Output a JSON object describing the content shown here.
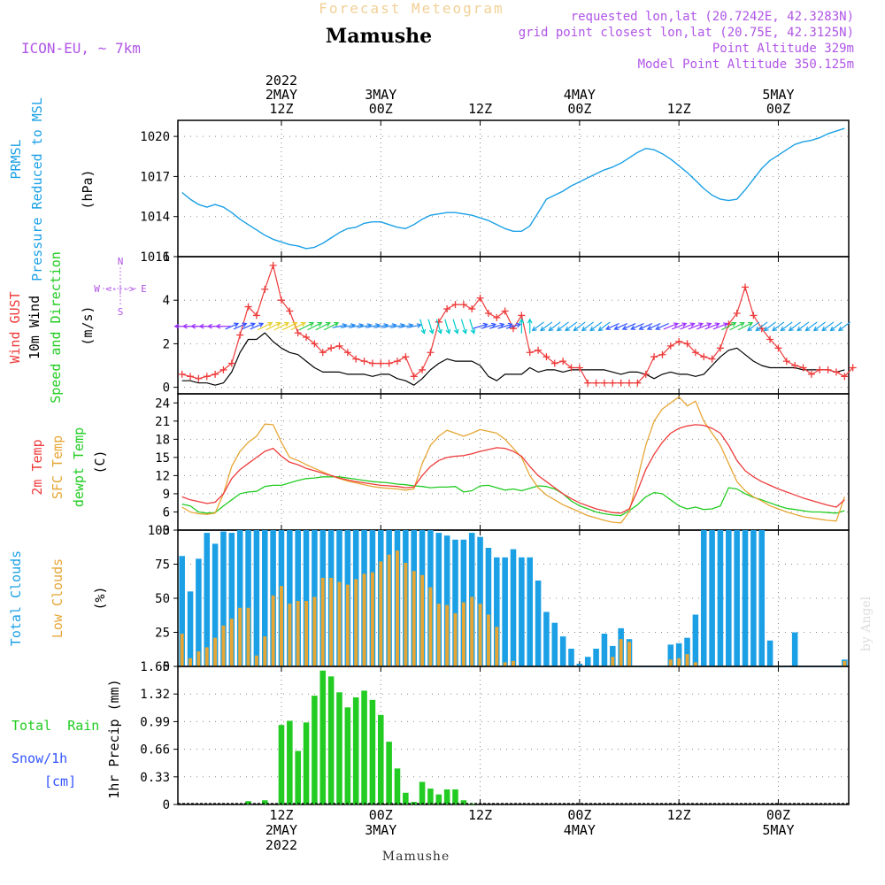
{
  "header": {
    "subtitle": "Forecast Meteogram",
    "location": "Mamushe",
    "model": "ICON-EU, ~ 7km",
    "requested": "requested lon,lat (20.7242E, 42.3283N)",
    "grid": "grid point closest lon,lat (20.75E, 42.3125N)",
    "point_alt": "Point Altitude 329m",
    "model_alt": "Model Point Altitude 350.125m",
    "footer_location": "Mamushe",
    "watermark": "by Angel"
  },
  "time_axis": {
    "top_labels": [
      {
        "h": 12,
        "lines": [
          "2022",
          "2MAY",
          "12Z"
        ]
      },
      {
        "h": 24,
        "lines": [
          "3MAY",
          "00Z"
        ]
      },
      {
        "h": 36,
        "lines": [
          "12Z"
        ]
      },
      {
        "h": 48,
        "lines": [
          "4MAY",
          "00Z"
        ]
      },
      {
        "h": 60,
        "lines": [
          "12Z"
        ]
      },
      {
        "h": 72,
        "lines": [
          "5MAY",
          "00Z"
        ]
      }
    ],
    "bottom_labels": [
      {
        "h": 12,
        "lines": [
          "12Z",
          "2MAY",
          "2022"
        ]
      },
      {
        "h": 24,
        "lines": [
          "00Z",
          "3MAY"
        ]
      },
      {
        "h": 36,
        "lines": [
          "12Z"
        ]
      },
      {
        "h": 48,
        "lines": [
          "00Z",
          "4MAY"
        ]
      },
      {
        "h": 60,
        "lines": [
          "12Z"
        ]
      },
      {
        "h": 72,
        "lines": [
          "00Z",
          "5MAY"
        ]
      }
    ]
  },
  "colors": {
    "blue": "#1ba0e6",
    "red": "#ee3b3b",
    "orange": "#e6a635",
    "green": "#22cc22",
    "purple": "#b055e6",
    "black": "#000000",
    "grid": "#888888"
  },
  "chart_data": [
    {
      "type": "line",
      "name": "pressure",
      "title_lines": [
        "PRMSL",
        "Pressure Reduced to MSL"
      ],
      "ylabel": "(hPa)",
      "ylim": [
        1011,
        1021.2
      ],
      "yticks": [
        1011,
        1014,
        1017,
        1020
      ],
      "series": [
        {
          "name": "PRMSL",
          "color_key": "blue",
          "values": [
            1015.8,
            1015.3,
            1014.9,
            1014.7,
            1014.9,
            1014.7,
            1014.3,
            1013.8,
            1013.4,
            1013.0,
            1012.6,
            1012.3,
            1012.1,
            1011.9,
            1011.8,
            1011.6,
            1011.7,
            1012.0,
            1012.4,
            1012.8,
            1013.1,
            1013.2,
            1013.5,
            1013.6,
            1013.6,
            1013.4,
            1013.2,
            1013.1,
            1013.4,
            1013.8,
            1014.1,
            1014.2,
            1014.3,
            1014.3,
            1014.2,
            1014.1,
            1013.9,
            1013.7,
            1013.4,
            1013.1,
            1012.9,
            1012.9,
            1013.3,
            1014.3,
            1015.3,
            1015.6,
            1015.9,
            1016.3,
            1016.6,
            1016.9,
            1017.2,
            1017.5,
            1017.7,
            1018.0,
            1018.4,
            1018.8,
            1019.1,
            1019.0,
            1018.7,
            1018.3,
            1017.8,
            1017.3,
            1016.7,
            1016.1,
            1015.6,
            1015.3,
            1015.2,
            1015.3,
            1016.0,
            1016.8,
            1017.6,
            1018.2,
            1018.6,
            1019.0,
            1019.4,
            1019.6,
            1019.7,
            1019.9,
            1020.2,
            1020.4,
            1020.6
          ]
        }
      ]
    },
    {
      "type": "line",
      "name": "wind",
      "title_lines": [
        "Wind GUST",
        "10m Wind",
        "Speed and Direction"
      ],
      "ylabel": "(m/s)",
      "compass": [
        "N",
        "W <-|-> E",
        "S"
      ],
      "ylim": [
        -0.3,
        6.0
      ],
      "yticks": [
        0,
        2,
        4,
        6
      ],
      "arrow_level": 2.8,
      "series": [
        {
          "name": "Wind GUST",
          "color_key": "red",
          "marker": "+",
          "values": [
            0.6,
            0.5,
            0.4,
            0.5,
            0.6,
            0.8,
            1.1,
            2.4,
            3.7,
            3.3,
            4.5,
            5.6,
            4.0,
            3.5,
            2.5,
            2.3,
            2.0,
            1.6,
            1.8,
            1.9,
            1.6,
            1.3,
            1.2,
            1.1,
            1.1,
            1.1,
            1.2,
            1.4,
            0.5,
            0.8,
            1.6,
            3.0,
            3.6,
            3.8,
            3.8,
            3.6,
            4.1,
            3.4,
            3.2,
            3.5,
            2.7,
            3.3,
            1.6,
            1.7,
            1.4,
            1.1,
            1.2,
            0.9,
            0.9,
            0.2,
            0.2,
            0.2,
            0.2,
            0.2,
            0.2,
            0.2,
            0.6,
            1.4,
            1.5,
            1.9,
            2.1,
            2.0,
            1.6,
            1.4,
            1.3,
            1.8,
            2.9,
            3.4,
            4.6,
            3.3,
            2.7,
            2.2,
            1.8,
            1.2,
            1.0,
            0.9,
            0.6,
            0.8,
            0.8,
            0.7,
            0.5,
            0.9
          ]
        },
        {
          "name": "10m Wind",
          "color_key": "black",
          "values": [
            0.3,
            0.3,
            0.2,
            0.2,
            0.1,
            0.2,
            0.7,
            1.6,
            2.2,
            2.2,
            2.5,
            2.1,
            1.8,
            1.6,
            1.5,
            1.2,
            0.9,
            0.7,
            0.7,
            0.7,
            0.6,
            0.6,
            0.6,
            0.5,
            0.6,
            0.6,
            0.4,
            0.3,
            0.1,
            0.4,
            0.8,
            1.1,
            1.3,
            1.2,
            1.2,
            1.2,
            1.0,
            0.5,
            0.3,
            0.6,
            0.6,
            0.6,
            0.9,
            0.7,
            0.8,
            0.8,
            0.7,
            0.8,
            0.8,
            0.8,
            0.8,
            0.8,
            0.7,
            0.6,
            0.7,
            0.7,
            0.6,
            0.4,
            0.6,
            0.7,
            0.6,
            0.6,
            0.5,
            0.6,
            1.0,
            1.4,
            1.7,
            1.8,
            1.5,
            1.2,
            1.0,
            0.9,
            0.9,
            0.9,
            0.9,
            0.8,
            0.8,
            0.8,
            0.8,
            0.7,
            0.8
          ]
        }
      ],
      "wind_arrows": [
        {
          "from_h": 0,
          "to_h": 6,
          "dx": -1.0,
          "dy": 0.0,
          "color": "#9b30ff"
        },
        {
          "from_h": 6,
          "to_h": 10,
          "dx": 0.9,
          "dy": -0.4,
          "color": "#3355ff"
        },
        {
          "from_h": 10,
          "to_h": 15,
          "dx": 1.0,
          "dy": -0.5,
          "color": "#e6cc22"
        },
        {
          "from_h": 15,
          "to_h": 19,
          "dx": 1.0,
          "dy": -0.5,
          "color": "#22cc44"
        },
        {
          "from_h": 19,
          "to_h": 29,
          "dx": 1.0,
          "dy": -0.2,
          "color": "#2288ee"
        },
        {
          "from_h": 29,
          "to_h": 36,
          "dx": 0.3,
          "dy": 1.0,
          "color": "#00cccc"
        },
        {
          "from_h": 36,
          "to_h": 41,
          "dx": 1.0,
          "dy": -0.3,
          "color": "#3355ff"
        },
        {
          "from_h": 41,
          "to_h": 43,
          "dx": 0.0,
          "dy": -1.0,
          "color": "#00cccc"
        },
        {
          "from_h": 43,
          "to_h": 52,
          "dx": -0.8,
          "dy": 0.6,
          "color": "#1ba0e6"
        },
        {
          "from_h": 52,
          "to_h": 59,
          "dx": -0.9,
          "dy": 0.4,
          "color": "#3355ff"
        },
        {
          "from_h": 59,
          "to_h": 66,
          "dx": 1.0,
          "dy": -0.4,
          "color": "#9b30ff"
        },
        {
          "from_h": 66,
          "to_h": 69,
          "dx": 1.0,
          "dy": -0.5,
          "color": "#22cc44"
        },
        {
          "from_h": 69,
          "to_h": 81,
          "dx": -0.8,
          "dy": 0.6,
          "color": "#1ba0e6"
        }
      ]
    },
    {
      "type": "line",
      "name": "temperature",
      "title_lines": [
        "2m Temp",
        "SFC Temp",
        "dewpt Temp"
      ],
      "ylabel": "(C)",
      "ylim": [
        3,
        25.5
      ],
      "yticks": [
        3,
        6,
        9,
        12,
        15,
        18,
        21,
        24
      ],
      "series": [
        {
          "name": "2m Temp",
          "color_key": "red",
          "values": [
            8.5,
            8.0,
            7.7,
            7.4,
            7.6,
            9.0,
            11.5,
            13.0,
            14.0,
            15.0,
            16.0,
            16.5,
            15.2,
            14.2,
            13.8,
            13.2,
            12.8,
            12.4,
            12.0,
            11.6,
            11.3,
            11.0,
            10.8,
            10.6,
            10.4,
            10.3,
            10.2,
            10.0,
            10.1,
            12.0,
            13.5,
            14.5,
            15.0,
            15.2,
            15.3,
            15.6,
            16.0,
            16.3,
            16.6,
            16.5,
            16.0,
            15.2,
            13.5,
            12.0,
            11.0,
            10.0,
            9.0,
            8.2,
            7.5,
            7.0,
            6.5,
            6.2,
            5.9,
            5.8,
            6.5,
            9.5,
            13.0,
            15.5,
            17.5,
            19.0,
            19.8,
            20.2,
            20.4,
            20.3,
            19.8,
            19.0,
            17.0,
            14.5,
            12.8,
            11.8,
            11.0,
            10.4,
            9.8,
            9.3,
            8.8,
            8.3,
            7.9,
            7.5,
            7.1,
            6.8,
            8.0
          ]
        },
        {
          "name": "SFC Temp",
          "color_key": "orange",
          "values": [
            6.8,
            6.0,
            5.7,
            5.6,
            5.8,
            9.0,
            13.5,
            16.0,
            17.5,
            18.5,
            20.5,
            20.4,
            17.5,
            15.0,
            14.5,
            13.8,
            13.2,
            12.6,
            12.0,
            11.5,
            11.1,
            10.8,
            10.5,
            10.2,
            10.0,
            9.9,
            9.8,
            9.6,
            9.8,
            14.0,
            17.0,
            18.5,
            19.5,
            19.0,
            18.5,
            19.0,
            19.6,
            19.3,
            19.0,
            18.0,
            16.5,
            15.0,
            12.0,
            10.0,
            8.8,
            8.0,
            7.2,
            6.6,
            6.0,
            5.4,
            5.0,
            4.6,
            4.3,
            4.2,
            6.0,
            11.5,
            17.0,
            21.0,
            23.0,
            24.0,
            25.0,
            23.5,
            24.3,
            21.0,
            19.0,
            17.0,
            14.0,
            11.0,
            9.5,
            8.5,
            7.8,
            7.0,
            6.5,
            6.0,
            5.6,
            5.2,
            5.0,
            4.8,
            4.6,
            4.5,
            8.5
          ]
        },
        {
          "name": "dewpt Temp",
          "color_key": "green",
          "values": [
            7.3,
            7.0,
            6.0,
            5.8,
            5.9,
            7.0,
            8.0,
            9.0,
            9.3,
            9.4,
            10.2,
            10.4,
            10.4,
            10.8,
            11.2,
            11.5,
            11.6,
            11.8,
            11.8,
            11.8,
            11.6,
            11.4,
            11.2,
            11.0,
            10.9,
            10.8,
            10.6,
            10.5,
            10.3,
            10.2,
            10.0,
            10.1,
            10.1,
            10.2,
            9.3,
            9.5,
            10.3,
            10.4,
            10.0,
            9.6,
            9.8,
            9.5,
            9.9,
            10.3,
            10.2,
            9.8,
            9.0,
            7.8,
            7.0,
            6.5,
            6.0,
            5.7,
            5.5,
            5.4,
            6.2,
            7.2,
            8.5,
            9.2,
            9.0,
            8.0,
            7.0,
            6.5,
            6.8,
            6.4,
            6.5,
            7.0,
            10.0,
            9.8,
            9.0,
            8.4,
            8.0,
            7.5,
            7.0,
            6.6,
            6.4,
            6.2,
            6.0,
            6.0,
            5.9,
            5.8,
            6.2
          ]
        }
      ]
    },
    {
      "type": "bar",
      "name": "clouds",
      "title_lines": [
        "Total Clouds",
        "Low Clouds"
      ],
      "ylabel": "(%)",
      "ylim": [
        0,
        100
      ],
      "yticks": [
        0,
        25,
        50,
        75,
        100
      ],
      "series": [
        {
          "name": "Total Clouds",
          "color_key": "blue",
          "values": [
            81,
            55,
            79,
            98,
            90,
            99,
            98,
            100,
            100,
            100,
            100,
            100,
            100,
            100,
            100,
            100,
            100,
            100,
            100,
            100,
            100,
            100,
            100,
            100,
            100,
            100,
            100,
            100,
            100,
            100,
            100,
            98,
            96,
            93,
            93,
            98,
            95,
            87,
            80,
            80,
            86,
            80,
            80,
            63,
            40,
            32,
            22,
            13,
            2,
            7,
            13,
            24,
            15,
            28,
            20,
            0,
            0,
            0,
            0,
            16,
            17,
            21,
            38,
            100,
            100,
            100,
            100,
            100,
            100,
            100,
            100,
            19,
            0,
            0,
            25,
            0,
            0,
            0,
            0,
            0,
            5
          ]
        },
        {
          "name": "Low Clouds",
          "color_key": "orange",
          "values": [
            24,
            6,
            11,
            14,
            21,
            30,
            35,
            43,
            43,
            8,
            22,
            52,
            59,
            46,
            48,
            48,
            51,
            65,
            65,
            62,
            60,
            64,
            68,
            69,
            77,
            82,
            85,
            76,
            70,
            67,
            58,
            46,
            45,
            39,
            47,
            51,
            46,
            38,
            29,
            3,
            4,
            0,
            0,
            0,
            0,
            0,
            0,
            0,
            0,
            0,
            0,
            0,
            7,
            20,
            18,
            0,
            0,
            0,
            0,
            5,
            6,
            9,
            3,
            0,
            0,
            0,
            0,
            0,
            0,
            0,
            0,
            0,
            0,
            0,
            0,
            0,
            0,
            0,
            0,
            0,
            4
          ]
        }
      ]
    },
    {
      "type": "bar",
      "name": "precip",
      "title_lines": [
        "Total  Rain",
        "Snow/1h",
        "[cm]",
        "1hr Precip (mm)"
      ],
      "ylim": [
        0,
        1.65
      ],
      "yticks": [
        0,
        0.33,
        0.66,
        0.99,
        1.32,
        1.65
      ],
      "ytick_labels": [
        "0",
        "0.33",
        "0.66",
        "0.99",
        "1.32",
        "1.65"
      ],
      "series": [
        {
          "name": "Rain",
          "color_key": "green",
          "values": [
            0,
            0,
            0,
            0,
            0,
            0,
            0,
            0,
            0.04,
            0,
            0.05,
            0,
            0.95,
            1.0,
            0.64,
            0.98,
            1.3,
            1.6,
            1.53,
            1.34,
            1.16,
            1.28,
            1.36,
            1.25,
            1.07,
            0.75,
            0.43,
            0.14,
            0.03,
            0.27,
            0.19,
            0.12,
            0.18,
            0.18,
            0.05,
            0.01,
            0,
            0,
            0,
            0,
            0,
            0,
            0,
            0,
            0,
            0,
            0,
            0,
            0,
            0,
            0,
            0,
            0,
            0,
            0,
            0,
            0,
            0,
            0,
            0,
            0,
            0,
            0,
            0,
            0,
            0,
            0,
            0,
            0,
            0,
            0,
            0,
            0,
            0,
            0,
            0,
            0,
            0,
            0,
            0,
            0
          ]
        }
      ]
    }
  ]
}
